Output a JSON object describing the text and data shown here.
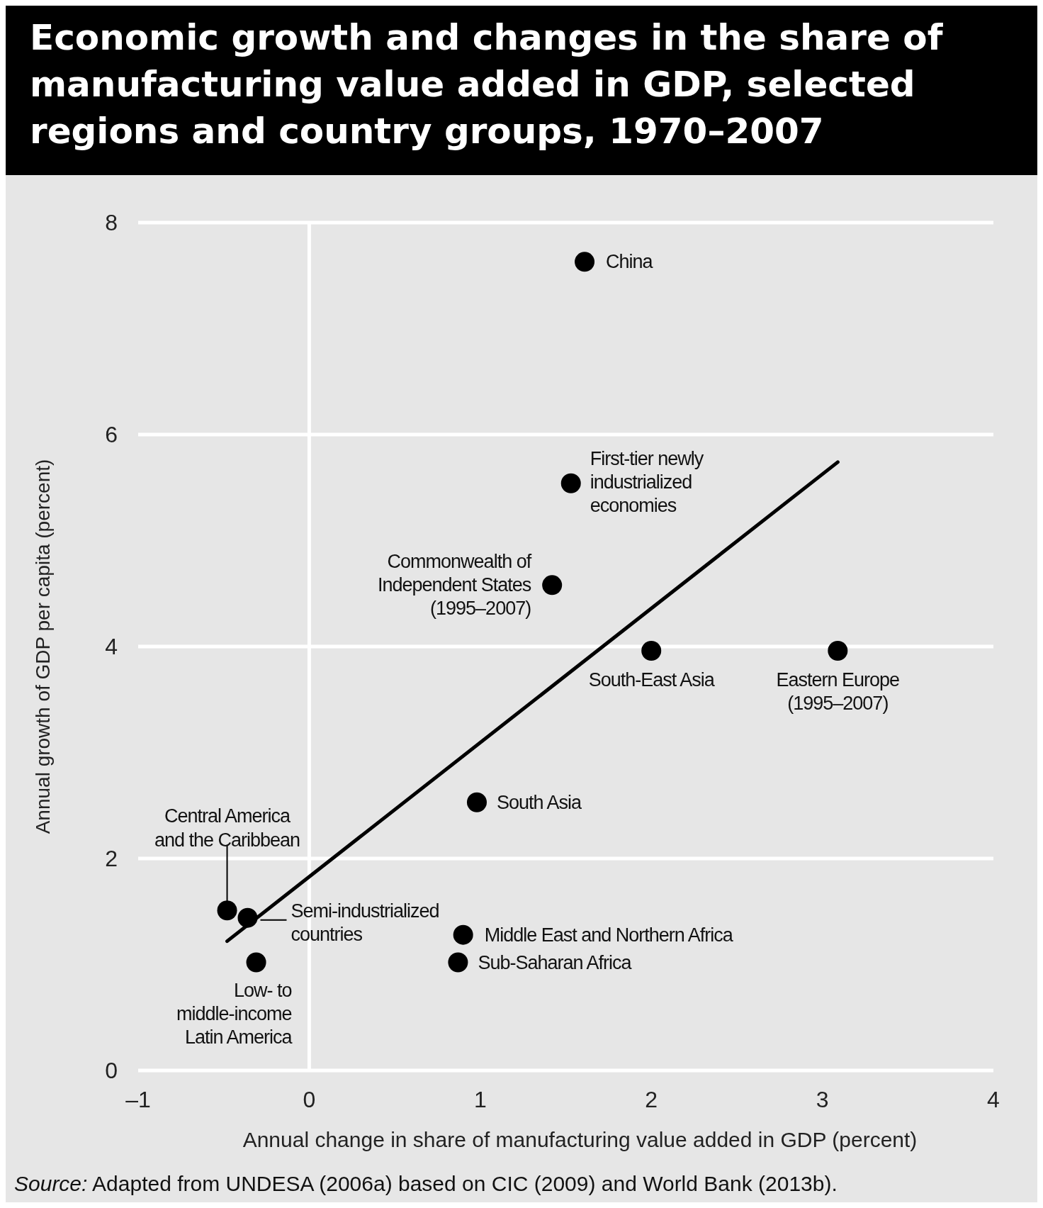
{
  "chart_data": {
    "type": "scatter",
    "title": "Economic growth and changes in the share of manufacturing value added in GDP, selected regions and country groups, 1970–2007",
    "xlabel": "Annual change in share of manufacturing value added in GDP (percent)",
    "ylabel": "Annual growth of GDP per capita (percent)",
    "xlim": [
      -1,
      4
    ],
    "xticks": [
      {
        "value": -1,
        "label": "–1"
      },
      0,
      1,
      2,
      3,
      4
    ],
    "ylim": [
      0,
      8
    ],
    "yticks": [
      0,
      2,
      4,
      6,
      8
    ],
    "grid": "y",
    "marker": "circle",
    "ref_lines": [
      {
        "axis": "x",
        "value": 0,
        "color": "#ffffff"
      }
    ],
    "series": [
      {
        "type": "scatter",
        "color": "#000000",
        "x": [
          1.61,
          1.53,
          1.42,
          2.0,
          3.09,
          0.98,
          -0.48,
          -0.36,
          -0.31,
          0.9,
          0.87
        ],
        "values": [
          7.63,
          5.54,
          4.58,
          3.96,
          3.96,
          2.53,
          1.51,
          1.44,
          1.02,
          1.28,
          1.02
        ]
      },
      {
        "type": "line",
        "marker": "none",
        "color": "#000000",
        "x": [
          -0.48,
          3.09
        ],
        "values": [
          1.22,
          5.74
        ]
      }
    ],
    "annotations": [
      {
        "text": "China",
        "x": 1.61,
        "y": 7.63
      },
      {
        "text": "First-tier newly\nindustrialized\neconomies",
        "x": 1.53,
        "y": 5.54
      },
      {
        "text": "Commonwealth of\nIndependent States\n(1995–2007)",
        "x": 1.42,
        "y": 4.58
      },
      {
        "text": "South-East Asia",
        "x": 2.0,
        "y": 3.96
      },
      {
        "text": "Eastern Europe\n(1995–2007)",
        "x": 3.09,
        "y": 3.96
      },
      {
        "text": "South Asia",
        "x": 0.98,
        "y": 2.53
      },
      {
        "text": "Central America\nand the Caribbean",
        "x": -0.48,
        "y": 1.51
      },
      {
        "text": "Semi-industrialized\ncountries",
        "x": -0.36,
        "y": 1.44
      },
      {
        "text": "Low- to\nmiddle-income\nLatin America",
        "x": -0.31,
        "y": 1.02
      },
      {
        "text": "Middle East and Northern Africa",
        "x": 0.9,
        "y": 1.28
      },
      {
        "text": "Sub-Saharan Africa",
        "x": 0.87,
        "y": 1.02
      },
      "Source: Adapted from UNDESA (2006a) based on CIC (2009) and World Bank (2013b)."
    ]
  }
}
